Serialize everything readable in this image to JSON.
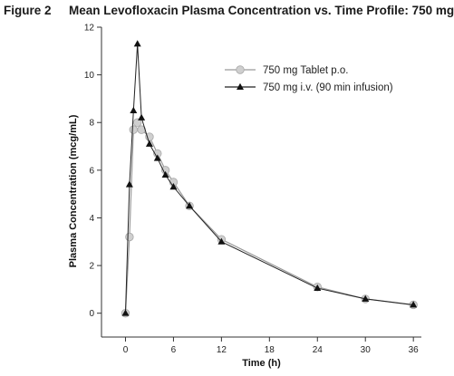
{
  "figure": {
    "label": "Figure 2",
    "title": "Mean Levofloxacin Plasma Concentration vs. Time Profile: 750 mg"
  },
  "chart_data": {
    "type": "line",
    "title": "Mean Levofloxacin Plasma Concentration vs. Time Profile: 750 mg",
    "xlabel": "Time (h)",
    "ylabel": "Plasma Concentration (mcg/mL)",
    "xlim": [
      -3,
      37
    ],
    "ylim": [
      -1,
      12
    ],
    "xticks": [
      0,
      6,
      12,
      18,
      24,
      30,
      36
    ],
    "yticks": [
      0,
      2,
      4,
      6,
      8,
      10,
      12
    ],
    "grid": false,
    "legend_position": "top-right",
    "series": [
      {
        "name": "750 mg Tablet p.o.",
        "marker": "circle",
        "color": "#c8c8c8",
        "x": [
          0,
          0.5,
          1,
          1.5,
          2,
          3,
          4,
          5,
          6,
          8,
          12,
          24,
          30,
          36
        ],
        "y": [
          0,
          3.2,
          7.7,
          8.0,
          7.7,
          7.4,
          6.7,
          6.0,
          5.5,
          4.5,
          3.1,
          1.1,
          0.6,
          0.35
        ]
      },
      {
        "name": "750 mg i.v. (90 min infusion)",
        "marker": "triangle",
        "color": "#1a1a1a",
        "x": [
          0,
          0.5,
          1,
          1.5,
          2,
          3,
          4,
          5,
          6,
          8,
          12,
          24,
          30,
          36
        ],
        "y": [
          0,
          5.4,
          8.5,
          11.3,
          8.2,
          7.1,
          6.5,
          5.8,
          5.3,
          4.5,
          3.0,
          1.05,
          0.6,
          0.35
        ]
      }
    ]
  }
}
